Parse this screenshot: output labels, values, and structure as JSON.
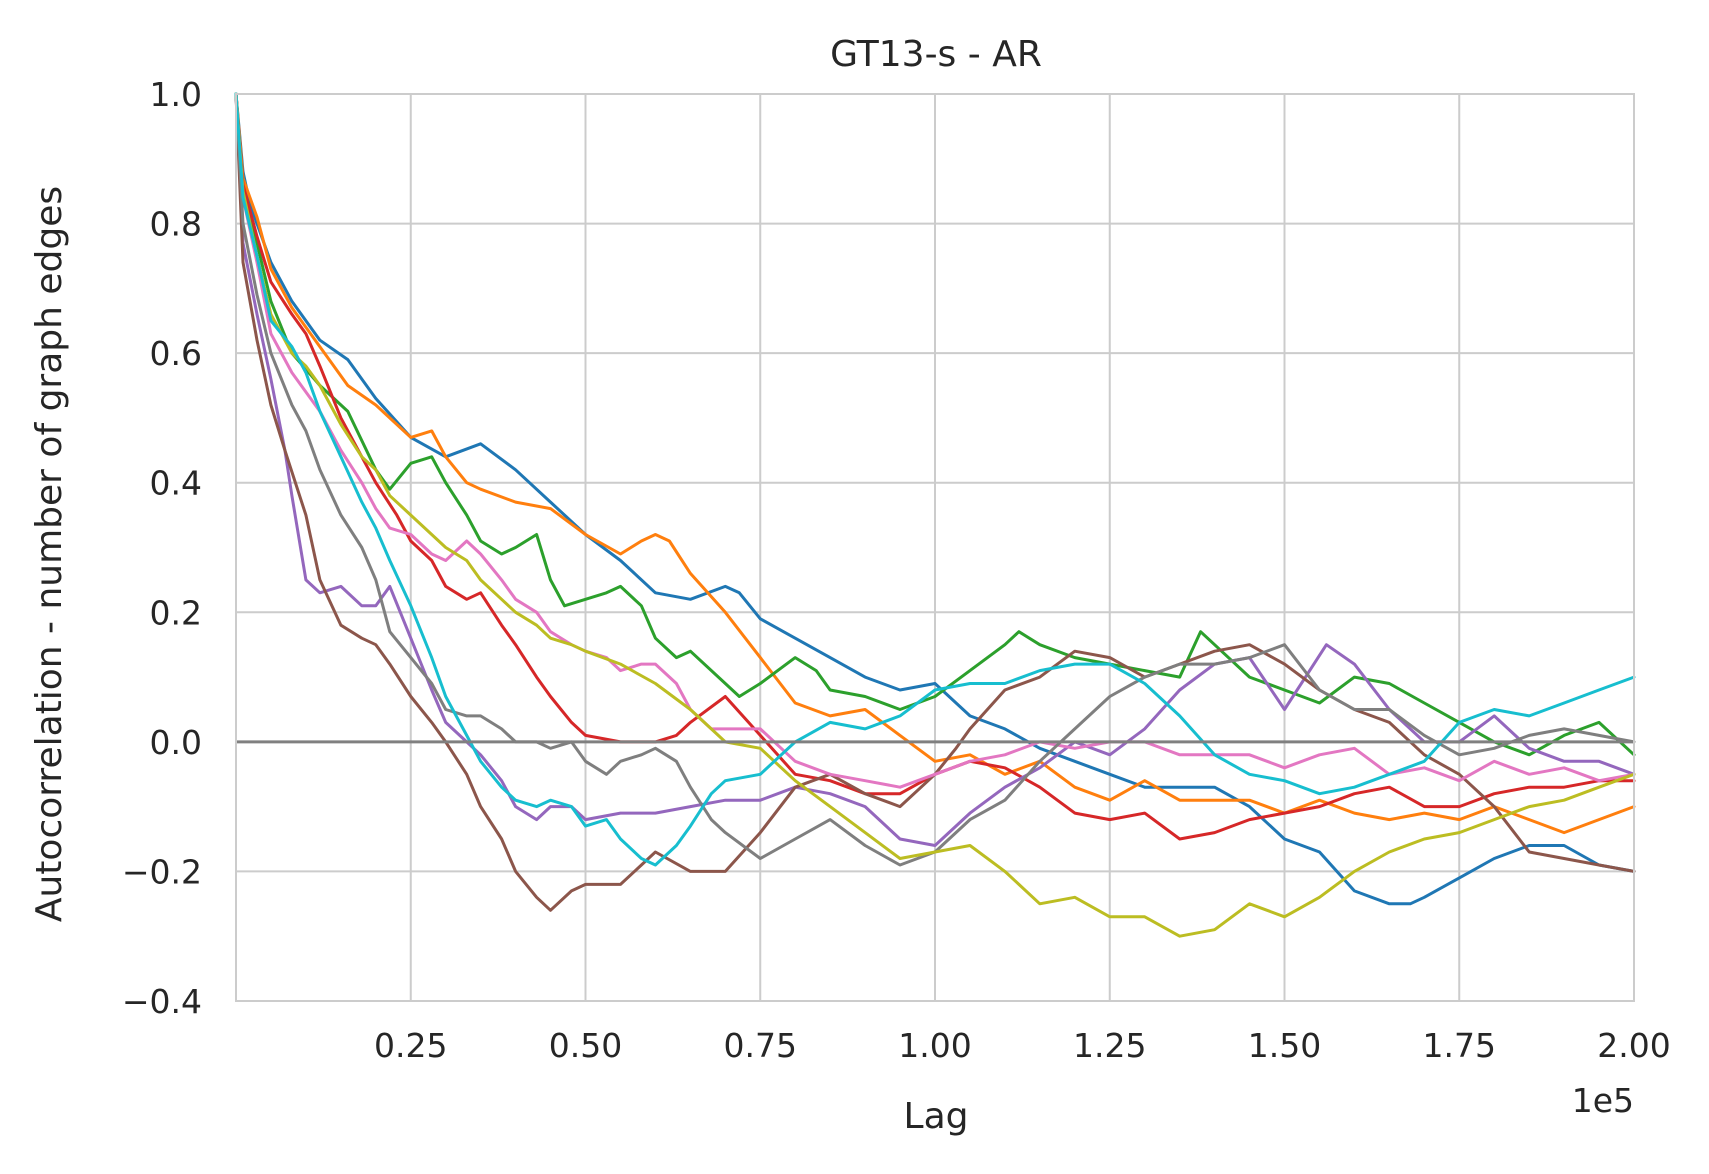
{
  "chart_data": {
    "type": "line",
    "title": "GT13-s - AR",
    "xlabel": "Lag",
    "ylabel": "Autocorrelation - number of graph edges",
    "x_offset_label": "1e5",
    "xlim": [
      0,
      2.0
    ],
    "ylim": [
      -0.4,
      1.0
    ],
    "x_ticks": [
      0.25,
      0.5,
      0.75,
      1.0,
      1.25,
      1.5,
      1.75,
      2.0
    ],
    "x_tick_labels": [
      "0.25",
      "0.50",
      "0.75",
      "1.00",
      "1.25",
      "1.50",
      "1.75",
      "2.00"
    ],
    "y_ticks": [
      -0.4,
      -0.2,
      0.0,
      0.2,
      0.4,
      0.6,
      0.8,
      1.0
    ],
    "y_tick_labels": [
      "−0.4",
      "−0.2",
      "0.0",
      "0.2",
      "0.4",
      "0.6",
      "0.8",
      "1.0"
    ],
    "grid": true,
    "zero_line": true,
    "colors": {
      "zero_line": "#808080",
      "grid": "#cccccc",
      "axes": "#cccccc"
    },
    "series": [
      {
        "color": "#1f77b4",
        "x": [
          0,
          0.01,
          0.02,
          0.05,
          0.08,
          0.12,
          0.16,
          0.2,
          0.25,
          0.3,
          0.35,
          0.4,
          0.45,
          0.5,
          0.55,
          0.6,
          0.65,
          0.7,
          0.72,
          0.75,
          0.8,
          0.85,
          0.9,
          0.95,
          1.0,
          1.05,
          1.1,
          1.15,
          1.2,
          1.25,
          1.3,
          1.35,
          1.4,
          1.45,
          1.5,
          1.55,
          1.6,
          1.65,
          1.68,
          1.7,
          1.75,
          1.8,
          1.85,
          1.9,
          1.95,
          2.0
        ],
        "y": [
          1.0,
          0.88,
          0.83,
          0.74,
          0.68,
          0.62,
          0.59,
          0.53,
          0.47,
          0.44,
          0.46,
          0.42,
          0.37,
          0.32,
          0.28,
          0.23,
          0.22,
          0.24,
          0.23,
          0.19,
          0.16,
          0.13,
          0.1,
          0.08,
          0.09,
          0.04,
          0.02,
          -0.01,
          -0.03,
          -0.05,
          -0.07,
          -0.07,
          -0.07,
          -0.1,
          -0.15,
          -0.17,
          -0.23,
          -0.25,
          -0.25,
          -0.24,
          -0.21,
          -0.18,
          -0.16,
          -0.16,
          -0.19,
          -0.2
        ]
      },
      {
        "color": "#ff7f0e",
        "x": [
          0,
          0.01,
          0.03,
          0.05,
          0.08,
          0.12,
          0.16,
          0.2,
          0.25,
          0.28,
          0.3,
          0.33,
          0.35,
          0.4,
          0.45,
          0.5,
          0.55,
          0.58,
          0.6,
          0.62,
          0.65,
          0.7,
          0.75,
          0.8,
          0.85,
          0.9,
          0.95,
          1.0,
          1.05,
          1.1,
          1.15,
          1.2,
          1.25,
          1.3,
          1.35,
          1.4,
          1.45,
          1.5,
          1.55,
          1.6,
          1.65,
          1.7,
          1.75,
          1.8,
          1.85,
          1.9,
          1.95,
          2.0
        ],
        "y": [
          1.0,
          0.87,
          0.81,
          0.73,
          0.67,
          0.61,
          0.55,
          0.52,
          0.47,
          0.48,
          0.44,
          0.4,
          0.39,
          0.37,
          0.36,
          0.32,
          0.29,
          0.31,
          0.32,
          0.31,
          0.26,
          0.2,
          0.13,
          0.06,
          0.04,
          0.05,
          0.01,
          -0.03,
          -0.02,
          -0.05,
          -0.03,
          -0.07,
          -0.09,
          -0.06,
          -0.09,
          -0.09,
          -0.09,
          -0.11,
          -0.09,
          -0.11,
          -0.12,
          -0.11,
          -0.12,
          -0.1,
          -0.12,
          -0.14,
          -0.12,
          -0.1
        ]
      },
      {
        "color": "#2ca02c",
        "x": [
          0,
          0.01,
          0.03,
          0.05,
          0.08,
          0.12,
          0.16,
          0.2,
          0.22,
          0.25,
          0.28,
          0.3,
          0.33,
          0.35,
          0.38,
          0.4,
          0.43,
          0.45,
          0.47,
          0.5,
          0.53,
          0.55,
          0.58,
          0.6,
          0.63,
          0.65,
          0.7,
          0.72,
          0.75,
          0.8,
          0.83,
          0.85,
          0.9,
          0.95,
          1.0,
          1.05,
          1.1,
          1.12,
          1.15,
          1.2,
          1.25,
          1.3,
          1.35,
          1.38,
          1.4,
          1.45,
          1.5,
          1.55,
          1.6,
          1.65,
          1.7,
          1.75,
          1.8,
          1.85,
          1.9,
          1.95,
          2.0
        ],
        "y": [
          1.0,
          0.85,
          0.77,
          0.68,
          0.6,
          0.55,
          0.51,
          0.42,
          0.39,
          0.43,
          0.44,
          0.4,
          0.35,
          0.31,
          0.29,
          0.3,
          0.32,
          0.25,
          0.21,
          0.22,
          0.23,
          0.24,
          0.21,
          0.16,
          0.13,
          0.14,
          0.09,
          0.07,
          0.09,
          0.13,
          0.11,
          0.08,
          0.07,
          0.05,
          0.07,
          0.11,
          0.15,
          0.17,
          0.15,
          0.13,
          0.12,
          0.11,
          0.1,
          0.17,
          0.15,
          0.1,
          0.08,
          0.06,
          0.1,
          0.09,
          0.06,
          0.03,
          0.0,
          -0.02,
          0.01,
          0.03,
          -0.02
        ]
      },
      {
        "color": "#d62728",
        "x": [
          0,
          0.01,
          0.03,
          0.05,
          0.08,
          0.1,
          0.12,
          0.15,
          0.18,
          0.2,
          0.23,
          0.25,
          0.28,
          0.3,
          0.33,
          0.35,
          0.38,
          0.4,
          0.43,
          0.45,
          0.48,
          0.5,
          0.55,
          0.6,
          0.63,
          0.65,
          0.7,
          0.75,
          0.8,
          0.85,
          0.9,
          0.95,
          1.0,
          1.05,
          1.1,
          1.15,
          1.2,
          1.25,
          1.3,
          1.35,
          1.4,
          1.45,
          1.5,
          1.55,
          1.6,
          1.65,
          1.7,
          1.75,
          1.8,
          1.85,
          1.9,
          1.95,
          2.0
        ],
        "y": [
          1.0,
          0.86,
          0.78,
          0.71,
          0.66,
          0.63,
          0.58,
          0.5,
          0.44,
          0.4,
          0.35,
          0.31,
          0.28,
          0.24,
          0.22,
          0.23,
          0.18,
          0.15,
          0.1,
          0.07,
          0.03,
          0.01,
          0.0,
          0.0,
          0.01,
          0.03,
          0.07,
          0.01,
          -0.05,
          -0.06,
          -0.08,
          -0.08,
          -0.05,
          -0.03,
          -0.04,
          -0.07,
          -0.11,
          -0.12,
          -0.11,
          -0.15,
          -0.14,
          -0.12,
          -0.11,
          -0.1,
          -0.08,
          -0.07,
          -0.1,
          -0.1,
          -0.08,
          -0.07,
          -0.07,
          -0.06,
          -0.06
        ]
      },
      {
        "color": "#9467bd",
        "x": [
          0,
          0.01,
          0.03,
          0.05,
          0.07,
          0.08,
          0.1,
          0.12,
          0.15,
          0.18,
          0.2,
          0.22,
          0.25,
          0.28,
          0.3,
          0.33,
          0.35,
          0.38,
          0.4,
          0.43,
          0.45,
          0.48,
          0.5,
          0.55,
          0.6,
          0.65,
          0.7,
          0.75,
          0.8,
          0.85,
          0.9,
          0.95,
          1.0,
          1.05,
          1.1,
          1.15,
          1.2,
          1.25,
          1.3,
          1.35,
          1.4,
          1.45,
          1.5,
          1.53,
          1.56,
          1.6,
          1.65,
          1.7,
          1.75,
          1.8,
          1.85,
          1.9,
          1.95,
          2.0
        ],
        "y": [
          1.0,
          0.77,
          0.66,
          0.56,
          0.45,
          0.38,
          0.25,
          0.23,
          0.24,
          0.21,
          0.21,
          0.24,
          0.16,
          0.08,
          0.03,
          0.0,
          -0.02,
          -0.06,
          -0.1,
          -0.12,
          -0.1,
          -0.1,
          -0.12,
          -0.11,
          -0.11,
          -0.1,
          -0.09,
          -0.09,
          -0.07,
          -0.08,
          -0.1,
          -0.15,
          -0.16,
          -0.11,
          -0.07,
          -0.04,
          0.0,
          -0.02,
          0.02,
          0.08,
          0.12,
          0.13,
          0.05,
          0.1,
          0.15,
          0.12,
          0.05,
          0.0,
          0.0,
          0.04,
          -0.01,
          -0.03,
          -0.03,
          -0.05
        ]
      },
      {
        "color": "#8c564b",
        "x": [
          0,
          0.01,
          0.03,
          0.05,
          0.07,
          0.1,
          0.12,
          0.15,
          0.18,
          0.2,
          0.22,
          0.25,
          0.28,
          0.3,
          0.33,
          0.35,
          0.38,
          0.4,
          0.43,
          0.45,
          0.48,
          0.5,
          0.55,
          0.6,
          0.65,
          0.7,
          0.75,
          0.8,
          0.85,
          0.9,
          0.95,
          1.0,
          1.03,
          1.05,
          1.1,
          1.15,
          1.2,
          1.25,
          1.3,
          1.35,
          1.4,
          1.45,
          1.5,
          1.55,
          1.6,
          1.65,
          1.7,
          1.75,
          1.8,
          1.85,
          1.9,
          1.95,
          2.0
        ],
        "y": [
          1.0,
          0.74,
          0.62,
          0.52,
          0.45,
          0.35,
          0.25,
          0.18,
          0.16,
          0.15,
          0.12,
          0.07,
          0.03,
          0.0,
          -0.05,
          -0.1,
          -0.15,
          -0.2,
          -0.24,
          -0.26,
          -0.23,
          -0.22,
          -0.22,
          -0.17,
          -0.2,
          -0.2,
          -0.14,
          -0.07,
          -0.05,
          -0.08,
          -0.1,
          -0.05,
          -0.01,
          0.02,
          0.08,
          0.1,
          0.14,
          0.13,
          0.1,
          0.12,
          0.14,
          0.15,
          0.12,
          0.08,
          0.05,
          0.03,
          -0.02,
          -0.05,
          -0.1,
          -0.17,
          -0.18,
          -0.19,
          -0.2
        ]
      },
      {
        "color": "#e377c2",
        "x": [
          0,
          0.01,
          0.03,
          0.05,
          0.08,
          0.1,
          0.12,
          0.15,
          0.18,
          0.2,
          0.22,
          0.25,
          0.28,
          0.3,
          0.33,
          0.35,
          0.38,
          0.4,
          0.43,
          0.45,
          0.48,
          0.5,
          0.53,
          0.55,
          0.58,
          0.6,
          0.63,
          0.65,
          0.68,
          0.7,
          0.75,
          0.8,
          0.85,
          0.9,
          0.95,
          1.0,
          1.05,
          1.1,
          1.15,
          1.2,
          1.25,
          1.3,
          1.35,
          1.4,
          1.45,
          1.5,
          1.55,
          1.6,
          1.65,
          1.7,
          1.75,
          1.8,
          1.85,
          1.9,
          1.95,
          2.0
        ],
        "y": [
          1.0,
          0.84,
          0.74,
          0.63,
          0.57,
          0.54,
          0.51,
          0.45,
          0.4,
          0.36,
          0.33,
          0.32,
          0.29,
          0.28,
          0.31,
          0.29,
          0.25,
          0.22,
          0.2,
          0.17,
          0.15,
          0.14,
          0.13,
          0.11,
          0.12,
          0.12,
          0.09,
          0.05,
          0.02,
          0.02,
          0.02,
          -0.03,
          -0.05,
          -0.06,
          -0.07,
          -0.05,
          -0.03,
          -0.02,
          0.0,
          -0.01,
          0.0,
          0.0,
          -0.02,
          -0.02,
          -0.02,
          -0.04,
          -0.02,
          -0.01,
          -0.05,
          -0.04,
          -0.06,
          -0.03,
          -0.05,
          -0.04,
          -0.06,
          -0.05
        ]
      },
      {
        "color": "#7f7f7f",
        "x": [
          0,
          0.01,
          0.03,
          0.05,
          0.08,
          0.1,
          0.12,
          0.15,
          0.18,
          0.2,
          0.22,
          0.25,
          0.28,
          0.3,
          0.33,
          0.35,
          0.38,
          0.4,
          0.43,
          0.45,
          0.48,
          0.5,
          0.53,
          0.55,
          0.58,
          0.6,
          0.63,
          0.65,
          0.68,
          0.7,
          0.75,
          0.8,
          0.85,
          0.9,
          0.95,
          1.0,
          1.05,
          1.1,
          1.15,
          1.2,
          1.25,
          1.3,
          1.35,
          1.4,
          1.45,
          1.5,
          1.55,
          1.6,
          1.65,
          1.7,
          1.75,
          1.8,
          1.85,
          1.9,
          1.95,
          2.0
        ],
        "y": [
          1.0,
          0.8,
          0.69,
          0.6,
          0.52,
          0.48,
          0.42,
          0.35,
          0.3,
          0.25,
          0.17,
          0.13,
          0.09,
          0.05,
          0.04,
          0.04,
          0.02,
          0.0,
          0.0,
          -0.01,
          0.0,
          -0.03,
          -0.05,
          -0.03,
          -0.02,
          -0.01,
          -0.03,
          -0.07,
          -0.12,
          -0.14,
          -0.18,
          -0.15,
          -0.12,
          -0.16,
          -0.19,
          -0.17,
          -0.12,
          -0.09,
          -0.03,
          0.02,
          0.07,
          0.1,
          0.12,
          0.12,
          0.13,
          0.15,
          0.08,
          0.05,
          0.05,
          0.01,
          -0.02,
          -0.01,
          0.01,
          0.02,
          0.01,
          0.0
        ]
      },
      {
        "color": "#bcbd22",
        "x": [
          0,
          0.01,
          0.03,
          0.05,
          0.08,
          0.1,
          0.12,
          0.15,
          0.18,
          0.2,
          0.22,
          0.25,
          0.28,
          0.3,
          0.33,
          0.35,
          0.38,
          0.4,
          0.43,
          0.45,
          0.48,
          0.5,
          0.55,
          0.6,
          0.65,
          0.7,
          0.75,
          0.8,
          0.85,
          0.9,
          0.95,
          1.0,
          1.05,
          1.1,
          1.15,
          1.2,
          1.25,
          1.3,
          1.35,
          1.4,
          1.45,
          1.5,
          1.55,
          1.6,
          1.65,
          1.7,
          1.75,
          1.8,
          1.85,
          1.9,
          1.95,
          2.0
        ],
        "y": [
          1.0,
          0.85,
          0.75,
          0.66,
          0.6,
          0.58,
          0.55,
          0.49,
          0.44,
          0.42,
          0.38,
          0.35,
          0.32,
          0.3,
          0.28,
          0.25,
          0.22,
          0.2,
          0.18,
          0.16,
          0.15,
          0.14,
          0.12,
          0.09,
          0.05,
          0.0,
          -0.01,
          -0.06,
          -0.1,
          -0.14,
          -0.18,
          -0.17,
          -0.16,
          -0.2,
          -0.25,
          -0.24,
          -0.27,
          -0.27,
          -0.3,
          -0.29,
          -0.25,
          -0.27,
          -0.24,
          -0.2,
          -0.17,
          -0.15,
          -0.14,
          -0.12,
          -0.1,
          -0.09,
          -0.07,
          -0.05
        ]
      },
      {
        "color": "#17becf",
        "x": [
          0,
          0.01,
          0.03,
          0.05,
          0.08,
          0.1,
          0.12,
          0.15,
          0.18,
          0.2,
          0.22,
          0.25,
          0.28,
          0.3,
          0.33,
          0.35,
          0.38,
          0.4,
          0.43,
          0.45,
          0.48,
          0.5,
          0.53,
          0.55,
          0.58,
          0.6,
          0.63,
          0.65,
          0.68,
          0.7,
          0.75,
          0.8,
          0.85,
          0.9,
          0.95,
          1.0,
          1.05,
          1.1,
          1.15,
          1.2,
          1.25,
          1.3,
          1.35,
          1.4,
          1.45,
          1.5,
          1.55,
          1.6,
          1.65,
          1.7,
          1.75,
          1.8,
          1.85,
          1.9,
          1.95,
          2.0
        ],
        "y": [
          1.0,
          0.84,
          0.75,
          0.65,
          0.61,
          0.57,
          0.51,
          0.44,
          0.37,
          0.33,
          0.28,
          0.21,
          0.13,
          0.07,
          0.01,
          -0.03,
          -0.07,
          -0.09,
          -0.1,
          -0.09,
          -0.1,
          -0.13,
          -0.12,
          -0.15,
          -0.18,
          -0.19,
          -0.16,
          -0.13,
          -0.08,
          -0.06,
          -0.05,
          0.0,
          0.03,
          0.02,
          0.04,
          0.08,
          0.09,
          0.09,
          0.11,
          0.12,
          0.12,
          0.09,
          0.04,
          -0.02,
          -0.05,
          -0.06,
          -0.08,
          -0.07,
          -0.05,
          -0.03,
          0.03,
          0.05,
          0.04,
          0.06,
          0.08,
          0.1
        ]
      }
    ]
  }
}
